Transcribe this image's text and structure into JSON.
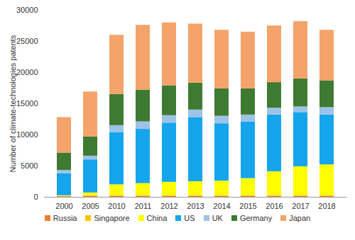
{
  "chart_data": {
    "type": "bar",
    "stacked": true,
    "y_label": "Number of climate-technologies patents",
    "categories": [
      "2000",
      "2005",
      "2010",
      "2011",
      "2012",
      "2013",
      "2014",
      "2015",
      "2016",
      "2017",
      "2018"
    ],
    "series": [
      {
        "name": "Russia",
        "color": "#ed7d31",
        "values": [
          100,
          150,
          150,
          150,
          150,
          150,
          150,
          150,
          150,
          150,
          150
        ]
      },
      {
        "name": "Singapore",
        "color": "#ffc000",
        "values": [
          50,
          100,
          100,
          100,
          100,
          100,
          100,
          100,
          100,
          100,
          100
        ]
      },
      {
        "name": "China",
        "color": "#ffff00",
        "values": [
          100,
          450,
          1750,
          1950,
          2150,
          2250,
          2350,
          2750,
          3850,
          4650,
          4950
        ]
      },
      {
        "name": "US",
        "color": "#14a5ec",
        "values": [
          3550,
          5300,
          8400,
          8700,
          9500,
          10300,
          9200,
          9100,
          9100,
          8700,
          8000
        ]
      },
      {
        "name": "UK",
        "color": "#9dc3e6",
        "values": [
          500,
          600,
          1100,
          1200,
          1200,
          1200,
          1200,
          1100,
          1100,
          900,
          1200
        ]
      },
      {
        "name": "Germany",
        "color": "#3f7a32",
        "values": [
          2800,
          3100,
          5000,
          5100,
          4800,
          4300,
          4400,
          4200,
          4100,
          4500,
          4300
        ]
      },
      {
        "name": "Japan",
        "color": "#f4a46a",
        "values": [
          5700,
          7200,
          9500,
          10400,
          10100,
          9500,
          9400,
          9100,
          9100,
          9200,
          8100
        ]
      }
    ],
    "ylim": [
      0,
      30000
    ],
    "yticks": [
      0,
      5000,
      10000,
      15000,
      20000,
      25000,
      30000
    ],
    "legend": "bottom",
    "grid": false
  }
}
